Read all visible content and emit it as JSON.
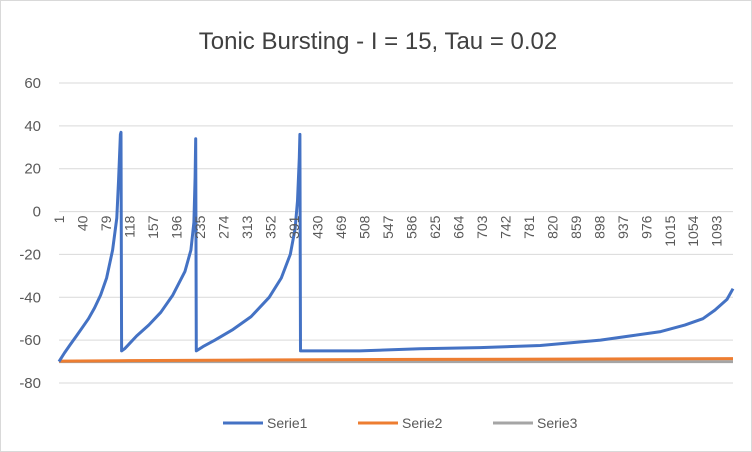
{
  "chart_data": {
    "type": "line",
    "title": "Tonic Bursting - I = 15, Tau = 0.02",
    "xlabel": "",
    "ylabel": "",
    "ylim": [
      -80,
      60
    ],
    "yticks": [
      60,
      40,
      20,
      0,
      -20,
      -40,
      -60,
      -80
    ],
    "xlim": [
      1,
      1120
    ],
    "xticks": [
      1,
      40,
      79,
      118,
      157,
      196,
      235,
      274,
      313,
      352,
      391,
      430,
      469,
      508,
      547,
      586,
      625,
      664,
      703,
      742,
      781,
      820,
      859,
      898,
      937,
      976,
      1015,
      1054,
      1093
    ],
    "grid": true,
    "legend_position": "bottom",
    "series": [
      {
        "name": "Serie1",
        "color": "#4472c4",
        "x": [
          1,
          10,
          20,
          30,
          40,
          50,
          60,
          70,
          80,
          90,
          97,
          100,
          103,
          104,
          105,
          110,
          130,
          150,
          170,
          190,
          210,
          220,
          225,
          227,
          228,
          229,
          240,
          260,
          290,
          320,
          350,
          370,
          385,
          393,
          397,
          400,
          401,
          402,
          450,
          500,
          600,
          700,
          800,
          900,
          950,
          1000,
          1040,
          1070,
          1090,
          1110,
          1120
        ],
        "y": [
          -70,
          -66,
          -62,
          -58,
          -54,
          -50,
          -45,
          -39,
          -31,
          -18,
          -3,
          15,
          36,
          37,
          -65,
          -64,
          -58,
          -53,
          -47,
          -39,
          -28,
          -18,
          -5,
          16,
          34,
          -65,
          -63,
          -60,
          -55,
          -49,
          -40,
          -31,
          -20,
          -8,
          5,
          25,
          36,
          -65,
          -65,
          -65,
          -64,
          -63.5,
          -62.5,
          -60,
          -58,
          -56,
          -53,
          -50,
          -46,
          -41,
          -36
        ]
      },
      {
        "name": "Serie2",
        "color": "#ed7d31",
        "x": [
          1,
          100,
          300,
          600,
          900,
          1120
        ],
        "y": [
          -69.8,
          -69.6,
          -69.3,
          -69.0,
          -68.8,
          -68.6
        ]
      },
      {
        "name": "Serie3",
        "color": "#a5a5a5",
        "x": [
          1,
          1120
        ],
        "y": [
          -70,
          -70
        ]
      }
    ]
  }
}
